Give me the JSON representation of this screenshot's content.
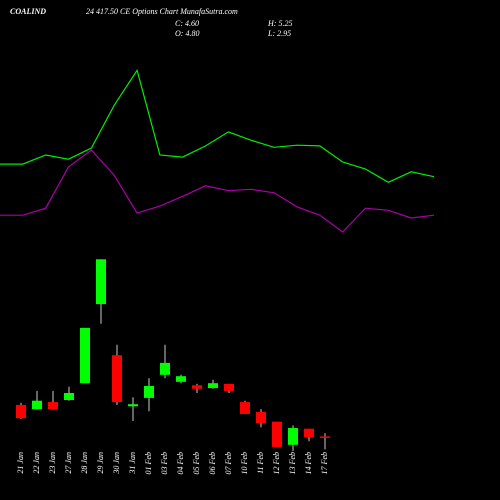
{
  "chart_data": {
    "type": "candlestick",
    "title": "COALIND",
    "subtitle": "24 417.50 CE Options Chart MunafaSutra.com",
    "stats": [
      "C: 4.60",
      "O: 4.80",
      "H: 5.25",
      "L: 2.95"
    ],
    "categories": [
      "21 Jan",
      "22 Jan",
      "23 Jan",
      "27 Jan",
      "28 Jan",
      "29 Jan",
      "30 Jan",
      "31 Jan",
      "01 Feb",
      "03 Feb",
      "04 Feb",
      "05 Feb",
      "06 Feb",
      "07 Feb",
      "10 Feb",
      "11 Feb",
      "12 Feb",
      "13 Feb",
      "14 Feb",
      "17 Feb"
    ],
    "open": [
      9.3,
      8.7,
      9.7,
      10,
      12.4,
      23.7,
      16.4,
      9.1,
      10.3,
      13.6,
      12.6,
      12.1,
      11.7,
      12.3,
      9.7,
      8.3,
      6.9,
      3.6,
      5.9,
      4.8
    ],
    "high": [
      9.6,
      11.3,
      11.3,
      11.9,
      20.3,
      30.1,
      17.9,
      10.4,
      13.1,
      17.9,
      13.6,
      12.3,
      12.9,
      12.3,
      9.9,
      8.7,
      6.9,
      6.4,
      5.9,
      5.25
    ],
    "low": [
      7.3,
      8.6,
      8.6,
      9.9,
      12.4,
      20.9,
      9.3,
      7,
      8.4,
      13.1,
      12.4,
      11,
      11.6,
      11,
      8,
      6.1,
      3.3,
      2.7,
      4.1,
      2.95
    ],
    "close": [
      7.4,
      9.9,
      8.7,
      11,
      20.3,
      30.1,
      9.7,
      9.4,
      12,
      15.3,
      13.4,
      11.6,
      12.4,
      11.3,
      8,
      6.7,
      3.3,
      6,
      4.7,
      4.6
    ],
    "up_color": "#00ff00",
    "down_color": "#ff0000",
    "lines": [
      {
        "color": "#00ee00",
        "values": [
          43.7,
          43.7,
          45,
          44.4,
          46,
          52.1,
          57.1,
          45,
          44.7,
          46.3,
          48.3,
          47.1,
          46.1,
          46.4,
          46.3,
          44,
          43,
          41.1,
          42.6,
          41.9
        ]
      },
      {
        "color": "#aa00aa",
        "values": [
          36.4,
          36.4,
          37.4,
          43.3,
          45.7,
          42.1,
          36.7,
          37.7,
          39.1,
          40.6,
          39.9,
          40.1,
          39.6,
          37.6,
          36.4,
          34,
          37.4,
          37.1,
          36,
          36.4
        ]
      }
    ],
    "ylim": [
      0,
      67
    ]
  }
}
